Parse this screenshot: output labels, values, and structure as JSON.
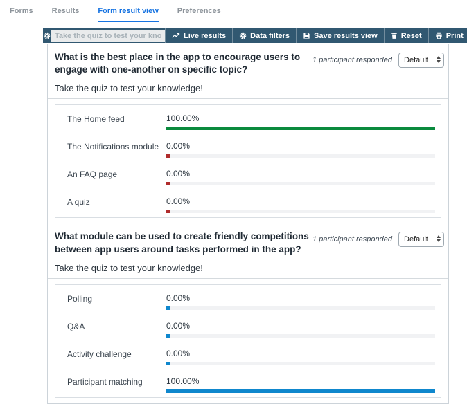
{
  "tabs": [
    {
      "label": "Forms",
      "active": false
    },
    {
      "label": "Results",
      "active": false
    },
    {
      "label": "Form result view",
      "active": true
    },
    {
      "label": "Preferences",
      "active": false
    }
  ],
  "toolbar": {
    "settings_icon": "gear-icon",
    "quiz_title_input": "Take the quiz to test your knowledge!",
    "buttons": [
      {
        "label": "Live results",
        "icon": "line-chart-icon"
      },
      {
        "label": "Data filters",
        "icon": "gear-icon"
      },
      {
        "label": "Save results view",
        "icon": "save-icon"
      },
      {
        "label": "Reset",
        "icon": "trash-icon"
      },
      {
        "label": "Print",
        "icon": "printer-icon"
      }
    ]
  },
  "colors": {
    "accent_blue": "#1673e1",
    "toolbar_bg": "#315871",
    "correct_green": "#0a8a3d",
    "wrong_red": "#b02c2c",
    "neutral_blue": "#0f87cd",
    "track_gray": "#f1f2f4"
  },
  "questions": [
    {
      "title": "What is the best place in the app to encourage users to engage with one-another on specific topic?",
      "participants": "1 participant responded",
      "view_select": "Default",
      "subtitle": "Take the quiz to test your knowledge!",
      "answers": [
        {
          "label": "The Home feed",
          "percent_label": "100.00%",
          "value": 100,
          "color": "#0a8a3d"
        },
        {
          "label": "The Notifications module",
          "percent_label": "0.00%",
          "value": 0,
          "color": "#b02c2c"
        },
        {
          "label": "An FAQ page",
          "percent_label": "0.00%",
          "value": 0,
          "color": "#b02c2c"
        },
        {
          "label": "A quiz",
          "percent_label": "0.00%",
          "value": 0,
          "color": "#b02c2c"
        }
      ]
    },
    {
      "title": "What module can be used to create friendly competitions between app users around tasks performed in the app?",
      "participants": "1 participant responded",
      "view_select": "Default",
      "subtitle": "Take the quiz to test your knowledge!",
      "answers": [
        {
          "label": "Polling",
          "percent_label": "0.00%",
          "value": 0,
          "color": "#0f87cd"
        },
        {
          "label": "Q&A",
          "percent_label": "0.00%",
          "value": 0,
          "color": "#0f87cd"
        },
        {
          "label": "Activity challenge",
          "percent_label": "0.00%",
          "value": 0,
          "color": "#0f87cd"
        },
        {
          "label": "Participant matching",
          "percent_label": "100.00%",
          "value": 100,
          "color": "#0f87cd"
        }
      ]
    }
  ]
}
